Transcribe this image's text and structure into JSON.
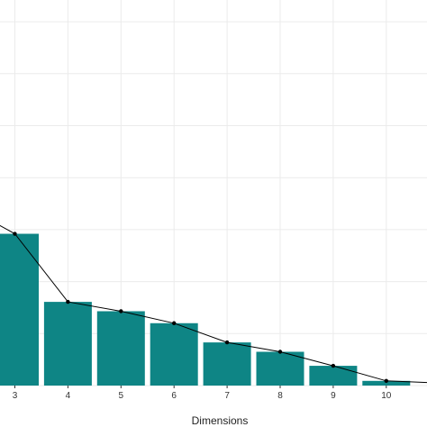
{
  "chart_data": {
    "type": "bar",
    "title": "",
    "xlabel": "Dimensions",
    "ylabel": "",
    "categories": [
      "3",
      "4",
      "5",
      "6",
      "7",
      "8",
      "9",
      "10"
    ],
    "values": [
      29.2,
      16.1,
      14.3,
      12.0,
      8.3,
      6.5,
      3.8,
      0.9
    ],
    "overlay": {
      "type": "line",
      "with_points": true,
      "values": [
        29.2,
        16.1,
        14.3,
        12.0,
        8.3,
        6.5,
        3.8,
        0.9
      ]
    },
    "ylim": [
      0,
      72
    ],
    "y_gridlines": [
      0,
      10,
      20,
      30,
      40,
      50,
      60,
      70
    ],
    "grid": true,
    "legend": "none",
    "bar_color": "#0e8585",
    "line_color": "#000000"
  }
}
